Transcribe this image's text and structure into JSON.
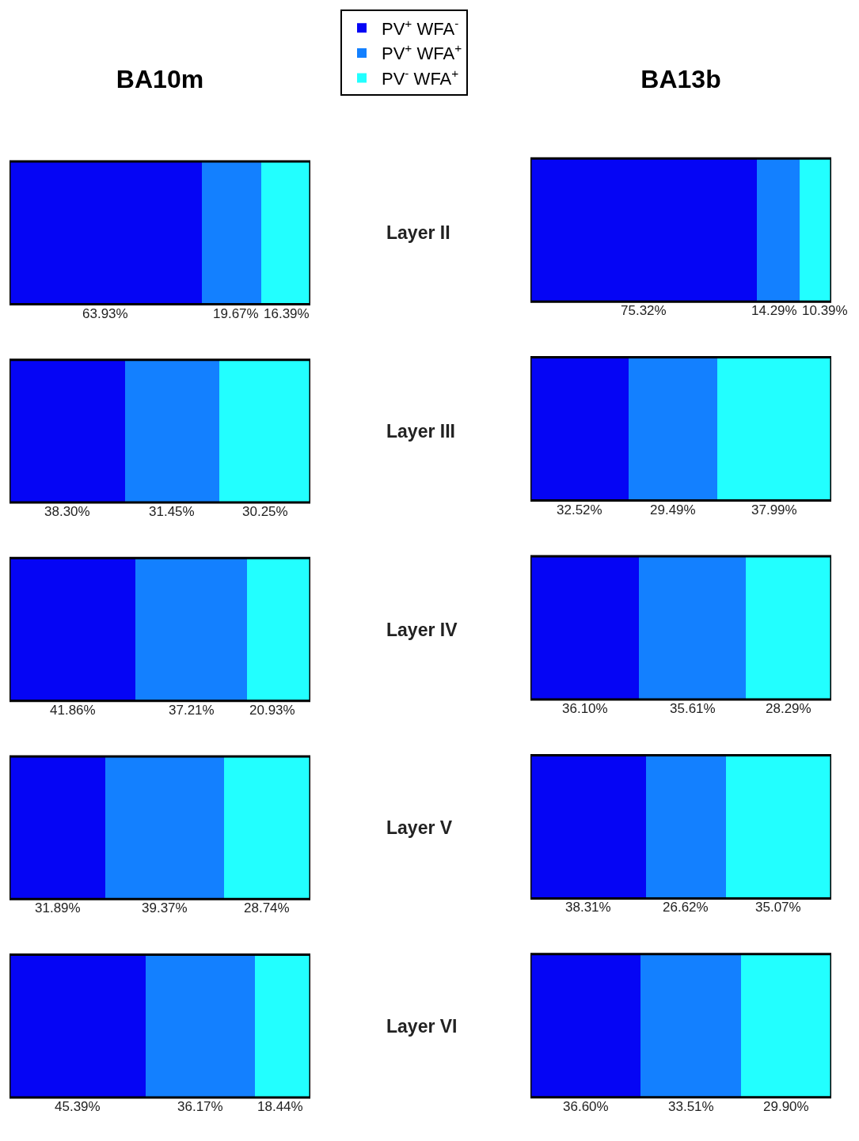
{
  "chart_data": [
    {
      "type": "bar",
      "title": "BA10m",
      "orientation": "horizontal",
      "stacked": true,
      "legend": "top",
      "tick_labels": "y",
      "categories": [
        "Layer II",
        "Layer III",
        "Layer IV",
        "Layer V",
        "Layer VI"
      ],
      "series": [
        {
          "name": "PV$^{+}$ WFA$^{-}$",
          "color": "#0505f5",
          "values": [
            63.93,
            38.3,
            41.86,
            31.89,
            45.39
          ],
          "value_labels": [
            "63.93%",
            "38.30%",
            "41.86%",
            "31.89%",
            "45.39%"
          ]
        },
        {
          "name": "PV$^{+}$ WFA$^{+}$",
          "color": "#1380ff",
          "values": [
            19.67,
            31.45,
            37.21,
            39.37,
            36.17
          ],
          "value_labels": [
            "19.67%",
            "31.45%",
            "37.21%",
            "39.37%",
            "36.17%"
          ]
        },
        {
          "name": "PV$^{-}$ WFA$^{+}$",
          "color": "#22ffff",
          "values": [
            16.39,
            30.25,
            20.93,
            28.74,
            18.44
          ],
          "value_labels": [
            "16.39%",
            "30.25%",
            "20.93%",
            "28.74%",
            "18.44%"
          ]
        }
      ]
    },
    {
      "type": "bar",
      "title": "BA13b",
      "orientation": "horizontal",
      "stacked": true,
      "tick_labels": false,
      "categories": [
        null,
        null,
        null,
        null,
        null
      ],
      "series": [
        {
          "color": "#0505f5",
          "values": [
            75.32,
            32.52,
            36.1,
            38.31,
            36.6
          ],
          "value_labels": [
            "75.32%",
            "32.52%",
            "36.10%",
            "38.31%",
            "36.60%"
          ]
        },
        {
          "color": "#1380ff",
          "values": [
            14.29,
            29.49,
            35.61,
            26.62,
            33.51
          ],
          "value_labels": [
            "14.29%",
            "29.49%",
            "35.61%",
            "26.62%",
            "33.51%"
          ]
        },
        {
          "color": "#22ffff",
          "values": [
            10.39,
            37.99,
            28.29,
            35.07,
            29.9
          ],
          "value_labels": [
            "10.39%",
            "37.99%",
            "28.29%",
            "35.07%",
            "29.90%"
          ]
        }
      ]
    }
  ]
}
